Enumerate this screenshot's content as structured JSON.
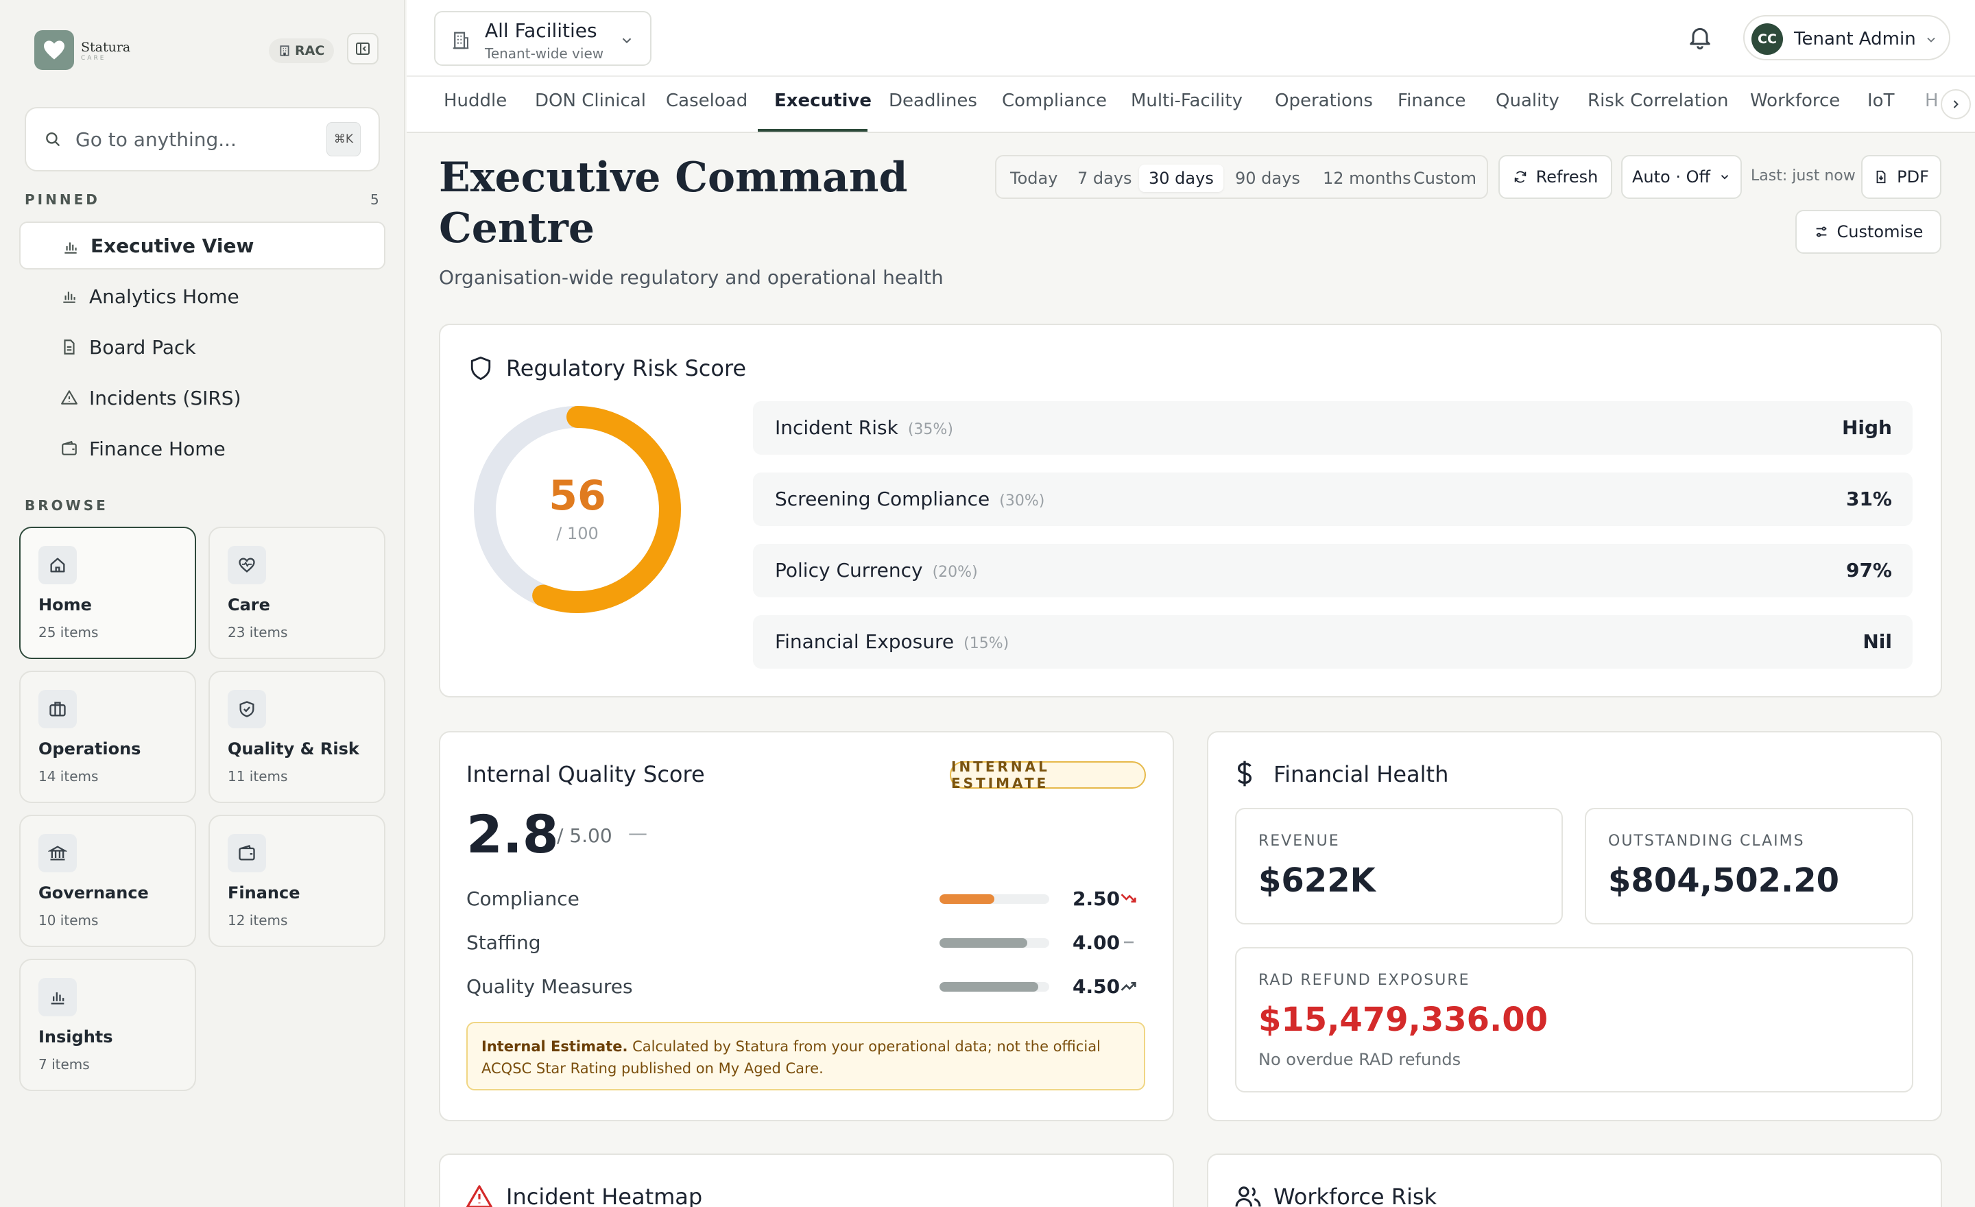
{
  "brand": {
    "name": "Statura",
    "sub": "CARE",
    "badge": "RAC"
  },
  "search": {
    "placeholder": "Go to anything...",
    "shortcut": "⌘K"
  },
  "pinned": {
    "label": "PINNED",
    "count": "5",
    "items": [
      {
        "label": "Executive View",
        "icon": "bar-chart-icon"
      },
      {
        "label": "Analytics Home",
        "icon": "bar-chart-icon"
      },
      {
        "label": "Board Pack",
        "icon": "document-icon"
      },
      {
        "label": "Incidents (SIRS)",
        "icon": "warning-icon"
      },
      {
        "label": "Finance Home",
        "icon": "wallet-icon"
      }
    ]
  },
  "browse": {
    "label": "BROWSE",
    "tiles": [
      {
        "name": "Home",
        "count": "25 items",
        "icon": "home-icon"
      },
      {
        "name": "Care",
        "count": "23 items",
        "icon": "heart-pulse-icon"
      },
      {
        "name": "Operations",
        "count": "14 items",
        "icon": "briefcase-icon"
      },
      {
        "name": "Quality & Risk",
        "count": "11 items",
        "icon": "shield-check-icon"
      },
      {
        "name": "Governance",
        "count": "10 items",
        "icon": "bank-icon"
      },
      {
        "name": "Finance",
        "count": "12 items",
        "icon": "wallet-icon"
      },
      {
        "name": "Insights",
        "count": "7 items",
        "icon": "bar-chart-icon"
      }
    ]
  },
  "facility": {
    "title": "All Facilities",
    "subtitle": "Tenant-wide view"
  },
  "user": {
    "initials": "CC",
    "name": "Tenant Admin"
  },
  "tabs": [
    "Huddle",
    "DON Clinical",
    "Caseload",
    "Executive",
    "Deadlines",
    "Compliance",
    "Multi-Facility",
    "Operations",
    "Finance",
    "Quality",
    "Risk Correlation",
    "Workforce",
    "IoT",
    "H"
  ],
  "active_tab": "Executive",
  "header": {
    "title": "Executive Command Centre",
    "subtitle": "Organisation-wide regulatory and operational health"
  },
  "ranges": [
    "Today",
    "7 days",
    "30 days",
    "90 days",
    "12 months",
    "Custom"
  ],
  "active_range": "30 days",
  "actions": {
    "refresh": "Refresh",
    "auto": "Auto · Off",
    "last_updated": "Last: just now",
    "pdf": "PDF",
    "customise": "Customise"
  },
  "risk": {
    "title": "Regulatory Risk Score",
    "score": "56",
    "score_value": 56,
    "score_max": "/ 100",
    "colors": {
      "accent": "#f59e0b",
      "score_text": "#e07b1f",
      "track": "#e3e7ee"
    },
    "rows": [
      {
        "label": "Incident Risk",
        "weight": "(35%)",
        "value": "High"
      },
      {
        "label": "Screening Compliance",
        "weight": "(30%)",
        "value": "31%"
      },
      {
        "label": "Policy Currency",
        "weight": "(20%)",
        "value": "97%"
      },
      {
        "label": "Financial Exposure",
        "weight": "(15%)",
        "value": "Nil"
      }
    ]
  },
  "quality": {
    "title": "Internal Quality Score",
    "badge": "INTERNAL ESTIMATE",
    "score": "2.8",
    "max": "/ 5.00",
    "trend": "—",
    "rows": [
      {
        "label": "Compliance",
        "value": "2.50",
        "score": 2.5,
        "color": "#e8893a",
        "trend": "down"
      },
      {
        "label": "Staffing",
        "value": "4.00",
        "score": 4.0,
        "color": "#9ba3a2",
        "trend": "flat"
      },
      {
        "label": "Quality Measures",
        "value": "4.50",
        "score": 4.5,
        "color": "#9ba3a2",
        "trend": "up"
      }
    ],
    "note_bold": "Internal Estimate.",
    "note_text": " Calculated by Statura from your operational data; not the official ACQSC Star Rating published on My Aged Care."
  },
  "finance": {
    "title": "Financial Health",
    "revenue_label": "REVENUE",
    "revenue": "$622K",
    "claims_label": "OUTSTANDING CLAIMS",
    "claims": "$804,502.20",
    "rad_label": "RAD REFUND EXPOSURE",
    "rad": "$15,479,336.00",
    "rad_note": "No overdue RAD refunds",
    "colors": {
      "rad": "#d42a2a"
    }
  },
  "bottom": {
    "heatmap_title": "Incident Heatmap",
    "workforce_title": "Workforce Risk"
  }
}
